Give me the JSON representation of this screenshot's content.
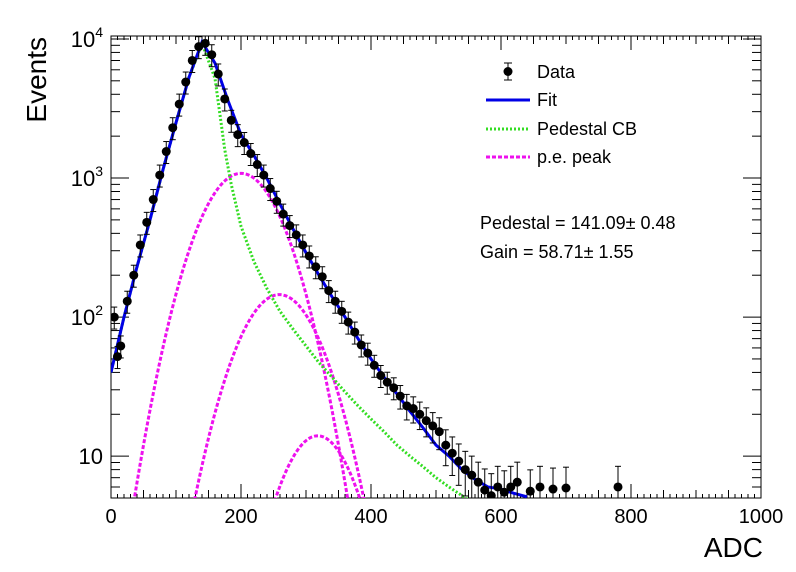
{
  "chart_data": {
    "type": "scatter",
    "xlabel": "ADC",
    "ylabel": "Events",
    "xlim": [
      0,
      1000
    ],
    "ylim": [
      5,
      10500
    ],
    "yscale": "log",
    "grid": false,
    "legend_position": "top-right",
    "x_ticks": [
      "0",
      "200",
      "400",
      "600",
      "800",
      "1000"
    ],
    "y_ticks": [
      {
        "value": 10,
        "base": "10",
        "exp": ""
      },
      {
        "value": 100,
        "base": "10",
        "exp": "2"
      },
      {
        "value": 1000,
        "base": "10",
        "exp": "3"
      },
      {
        "value": 10000,
        "base": "10",
        "exp": "4"
      }
    ],
    "legend": [
      {
        "label": "Data",
        "style": "marker",
        "color": "#000000"
      },
      {
        "label": "Fit",
        "style": "solid",
        "color": "#0000e6"
      },
      {
        "label": "Pedestal CB",
        "style": "dotted",
        "color": "#33dd22"
      },
      {
        "label": "p.e. peak",
        "style": "dashed",
        "color": "#ee11ee"
      }
    ],
    "annotations": [
      "Pedestal = 141.09± 0.48",
      "Gain = 58.71± 1.55"
    ],
    "data_points": [
      [
        5,
        100
      ],
      [
        10,
        52
      ],
      [
        15,
        62
      ],
      [
        25,
        130
      ],
      [
        35,
        200
      ],
      [
        45,
        330
      ],
      [
        55,
        480
      ],
      [
        65,
        700
      ],
      [
        75,
        1050
      ],
      [
        85,
        1550
      ],
      [
        95,
        2300
      ],
      [
        105,
        3400
      ],
      [
        115,
        4900
      ],
      [
        125,
        7000
      ],
      [
        135,
        8800
      ],
      [
        145,
        9300
      ],
      [
        155,
        7700
      ],
      [
        165,
        5600
      ],
      [
        175,
        3700
      ],
      [
        185,
        2600
      ],
      [
        195,
        2050
      ],
      [
        205,
        1800
      ],
      [
        215,
        1500
      ],
      [
        225,
        1250
      ],
      [
        235,
        1050
      ],
      [
        245,
        840
      ],
      [
        255,
        680
      ],
      [
        265,
        550
      ],
      [
        275,
        455
      ],
      [
        285,
        390
      ],
      [
        295,
        330
      ],
      [
        305,
        275
      ],
      [
        315,
        230
      ],
      [
        325,
        195
      ],
      [
        335,
        155
      ],
      [
        345,
        130
      ],
      [
        355,
        110
      ],
      [
        365,
        92
      ],
      [
        375,
        78
      ],
      [
        385,
        63
      ],
      [
        395,
        55
      ],
      [
        405,
        45
      ],
      [
        415,
        38
      ],
      [
        425,
        34
      ],
      [
        435,
        31
      ],
      [
        445,
        27
      ],
      [
        455,
        23
      ],
      [
        465,
        22
      ],
      [
        475,
        20
      ],
      [
        485,
        18
      ],
      [
        495,
        16.5
      ],
      [
        505,
        15
      ],
      [
        515,
        12
      ],
      [
        525,
        10.5
      ],
      [
        535,
        9.2
      ],
      [
        545,
        8
      ],
      [
        555,
        7.3
      ],
      [
        565,
        6.5
      ],
      [
        575,
        5.7
      ],
      [
        585,
        5.2
      ],
      [
        595,
        6.0
      ],
      [
        605,
        5.5
      ],
      [
        615,
        6.0
      ],
      [
        625,
        6.5
      ],
      [
        645,
        5.6
      ],
      [
        660,
        6.0
      ],
      [
        680,
        5.8
      ],
      [
        700,
        5.9
      ],
      [
        780,
        6.0
      ]
    ],
    "data_errors_rel": 0.18,
    "fit": {
      "name": "Fit",
      "color": "#0000e6",
      "points": [
        [
          0,
          40
        ],
        [
          20,
          100
        ],
        [
          40,
          230
        ],
        [
          60,
          500
        ],
        [
          80,
          1150
        ],
        [
          100,
          2500
        ],
        [
          120,
          5300
        ],
        [
          140,
          9500
        ],
        [
          160,
          6700
        ],
        [
          180,
          3600
        ],
        [
          200,
          2050
        ],
        [
          220,
          1450
        ],
        [
          240,
          990
        ],
        [
          260,
          650
        ],
        [
          280,
          430
        ],
        [
          300,
          290
        ],
        [
          320,
          200
        ],
        [
          340,
          140
        ],
        [
          360,
          100
        ],
        [
          380,
          70
        ],
        [
          400,
          50
        ],
        [
          420,
          37
        ],
        [
          440,
          28
        ],
        [
          460,
          21
        ],
        [
          480,
          16
        ],
        [
          500,
          12
        ],
        [
          520,
          10
        ],
        [
          540,
          8
        ],
        [
          560,
          6.8
        ],
        [
          580,
          6.0
        ],
        [
          600,
          5.8
        ],
        [
          620,
          5.4
        ],
        [
          640,
          5.1
        ]
      ]
    },
    "pedestal": {
      "name": "Pedestal CB",
      "color": "#33dd22",
      "points": [
        [
          0,
          40
        ],
        [
          20,
          100
        ],
        [
          40,
          230
        ],
        [
          60,
          500
        ],
        [
          80,
          1150
        ],
        [
          100,
          2500
        ],
        [
          120,
          5300
        ],
        [
          140,
          9300
        ],
        [
          160,
          5200
        ],
        [
          175,
          1600
        ],
        [
          185,
          900
        ],
        [
          200,
          450
        ],
        [
          220,
          250
        ],
        [
          240,
          160
        ],
        [
          260,
          110
        ],
        [
          280,
          82
        ],
        [
          300,
          62
        ],
        [
          320,
          47
        ],
        [
          340,
          37
        ],
        [
          360,
          29
        ],
        [
          380,
          23
        ],
        [
          400,
          18.5
        ],
        [
          420,
          15
        ],
        [
          440,
          12
        ],
        [
          460,
          10
        ],
        [
          480,
          8.4
        ],
        [
          500,
          7
        ],
        [
          520,
          6
        ],
        [
          540,
          5.2
        ],
        [
          560,
          4.5
        ]
      ]
    },
    "pe_peaks": [
      {
        "mu": 200,
        "sigma": 50,
        "amp": 1080
      },
      {
        "mu": 259,
        "sigma": 50,
        "amp": 145
      },
      {
        "mu": 318,
        "sigma": 45,
        "amp": 14
      }
    ]
  }
}
